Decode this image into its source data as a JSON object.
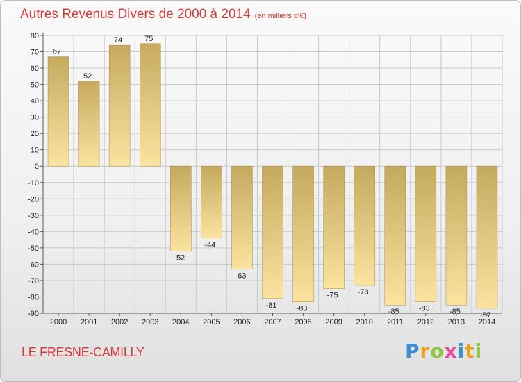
{
  "header": {
    "title": "Autres Revenus Divers de 2000 à 2014",
    "subtitle": "(en milliers d'€)"
  },
  "footer": {
    "commune": "LE FRESNE-CAMILLY",
    "logo_text": "Proxiti",
    "logo_colors": [
      "#3a8fd6",
      "#e8a21c",
      "#8dc63f",
      "#e94b9b",
      "#3a8fd6",
      "#e8a21c",
      "#8dc63f"
    ]
  },
  "colors": {
    "title": "#d63a3a",
    "bar_dark": "#c4aa5e",
    "bar_light": "#fbe3a0",
    "grid": "#c8c8c8"
  },
  "chart_data": {
    "type": "bar",
    "title": "Autres Revenus Divers de 2000 à 2014",
    "subtitle": "(en milliers d'€)",
    "categories": [
      "2000",
      "2001",
      "2002",
      "2003",
      "2004",
      "2005",
      "2006",
      "2007",
      "2008",
      "2009",
      "2010",
      "2011",
      "2012",
      "2013",
      "2014"
    ],
    "values": [
      67,
      52,
      74,
      75,
      -52,
      -44,
      -63,
      -81,
      -83,
      -75,
      -73,
      -85,
      -83,
      -85,
      -87
    ],
    "ylim": [
      -90,
      80
    ],
    "yticks": [
      80,
      70,
      60,
      50,
      40,
      30,
      20,
      10,
      0,
      -10,
      -20,
      -30,
      -40,
      -50,
      -60,
      -70,
      -80,
      -90
    ],
    "grid": true,
    "legend": "none"
  }
}
